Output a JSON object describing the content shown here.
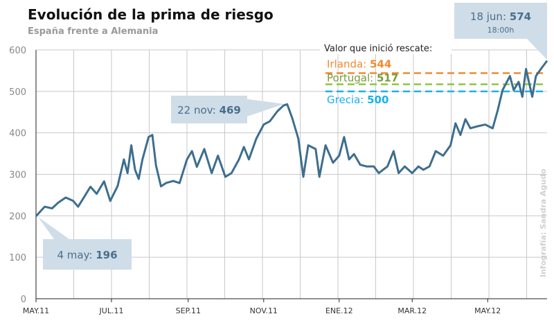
{
  "chart_data": {
    "type": "line",
    "title": "Evolución de la prima de riesgo",
    "subtitle": "España frente a Alemania",
    "xlabel": "",
    "ylabel": "",
    "ylim": [
      0,
      600
    ],
    "yticks": [
      0,
      100,
      200,
      300,
      400,
      500,
      600
    ],
    "x_unit": "days since 2 May 2011",
    "xlim": [
      0,
      413
    ],
    "xticks": [
      {
        "day": 0,
        "label": "MAY.11"
      },
      {
        "day": 61,
        "label": "JUL.11"
      },
      {
        "day": 123,
        "label": "SEP.11"
      },
      {
        "day": 184,
        "label": "NOV.11"
      },
      {
        "day": 245,
        "label": "ENE.12"
      },
      {
        "day": 304,
        "label": "MAR.12"
      },
      {
        "day": 365,
        "label": "MAY.12"
      }
    ],
    "grid": true,
    "series": [
      {
        "name": "Prima de riesgo",
        "color": "#3d6e8e",
        "points": [
          [
            0,
            199
          ],
          [
            7,
            222
          ],
          [
            13,
            218
          ],
          [
            18,
            232
          ],
          [
            24,
            244
          ],
          [
            30,
            236
          ],
          [
            34,
            222
          ],
          [
            38,
            241
          ],
          [
            44,
            270
          ],
          [
            49,
            253
          ],
          [
            55,
            283
          ],
          [
            60,
            236
          ],
          [
            66,
            272
          ],
          [
            71,
            336
          ],
          [
            74,
            303
          ],
          [
            77,
            370
          ],
          [
            80,
            311
          ],
          [
            83,
            289
          ],
          [
            86,
            336
          ],
          [
            91,
            390
          ],
          [
            94,
            395
          ],
          [
            97,
            321
          ],
          [
            101,
            271
          ],
          [
            105,
            279
          ],
          [
            111,
            284
          ],
          [
            116,
            279
          ],
          [
            122,
            336
          ],
          [
            126,
            356
          ],
          [
            130,
            318
          ],
          [
            136,
            361
          ],
          [
            142,
            303
          ],
          [
            147,
            345
          ],
          [
            153,
            294
          ],
          [
            158,
            303
          ],
          [
            164,
            336
          ],
          [
            168,
            366
          ],
          [
            172,
            336
          ],
          [
            178,
            386
          ],
          [
            184,
            420
          ],
          [
            189,
            428
          ],
          [
            195,
            452
          ],
          [
            200,
            466
          ],
          [
            203,
            469
          ],
          [
            207,
            436
          ],
          [
            212,
            386
          ],
          [
            216,
            294
          ],
          [
            220,
            370
          ],
          [
            226,
            361
          ],
          [
            229,
            294
          ],
          [
            234,
            370
          ],
          [
            240,
            328
          ],
          [
            245,
            345
          ],
          [
            249,
            390
          ],
          [
            253,
            336
          ],
          [
            257,
            349
          ],
          [
            262,
            323
          ],
          [
            267,
            319
          ],
          [
            273,
            319
          ],
          [
            277,
            303
          ],
          [
            284,
            319
          ],
          [
            289,
            356
          ],
          [
            293,
            303
          ],
          [
            298,
            319
          ],
          [
            304,
            303
          ],
          [
            309,
            319
          ],
          [
            313,
            311
          ],
          [
            318,
            319
          ],
          [
            323,
            356
          ],
          [
            329,
            345
          ],
          [
            335,
            370
          ],
          [
            339,
            423
          ],
          [
            343,
            395
          ],
          [
            347,
            433
          ],
          [
            351,
            411
          ],
          [
            357,
            416
          ],
          [
            363,
            420
          ],
          [
            369,
            411
          ],
          [
            373,
            453
          ],
          [
            377,
            503
          ],
          [
            383,
            537
          ],
          [
            386,
            503
          ],
          [
            390,
            523
          ],
          [
            393,
            487
          ],
          [
            396,
            554
          ],
          [
            401,
            487
          ],
          [
            404,
            537
          ],
          [
            408,
            554
          ],
          [
            413,
            574
          ]
        ]
      }
    ],
    "reference_header": "Valor que inició rescate:",
    "reference_lines": [
      {
        "label": "Irlanda:",
        "value_text": "544",
        "value": 544,
        "color": "#f08a30"
      },
      {
        "label": "Portugal:",
        "value_text": "517",
        "value": 517,
        "color": "#8cc63f",
        "text_color": "#7a9a3a"
      },
      {
        "label": "Grecia:",
        "value_text": "500",
        "value": 500,
        "color": "#1ab0f0"
      }
    ],
    "annotations": [
      {
        "date": "4 may:",
        "value_text": "196"
      },
      {
        "date": "22 nov:",
        "value_text": "469"
      },
      {
        "date": "18 jun:",
        "value_text": "574",
        "time": "18:00h"
      }
    ],
    "credit": "Infografía: Sandra Agudo"
  }
}
